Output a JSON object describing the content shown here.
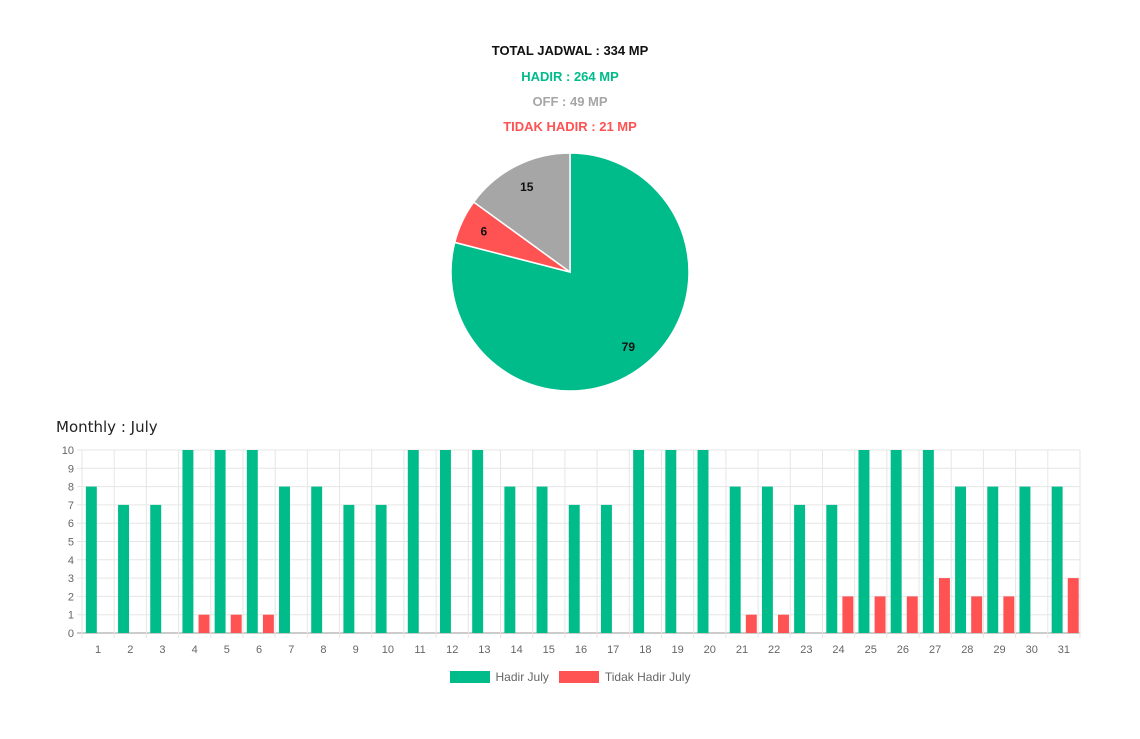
{
  "summary": {
    "total": "TOTAL JADWAL : 334 MP",
    "hadir": "HADIR : 264 MP",
    "off": "OFF : 49 MP",
    "tidak_hadir": "TIDAK HADIR : 21 MP"
  },
  "colors": {
    "hadir": "#00bc8a",
    "off": "#a6a6a6",
    "tidak_hadir": "#ff5252",
    "total": "#111111"
  },
  "monthly_title": "Monthly : July",
  "chart_data": [
    {
      "type": "pie",
      "slices": [
        {
          "value": 79,
          "label": "79",
          "color": "#00bc8a"
        },
        {
          "value": 6,
          "label": "6",
          "color": "#ff5252"
        },
        {
          "value": 15,
          "label": "15",
          "color": "#a6a6a6"
        }
      ]
    },
    {
      "type": "bar",
      "title": "Monthly : July",
      "categories": [
        "1",
        "2",
        "3",
        "4",
        "5",
        "6",
        "7",
        "8",
        "9",
        "10",
        "11",
        "12",
        "13",
        "14",
        "15",
        "16",
        "17",
        "18",
        "19",
        "20",
        "21",
        "22",
        "23",
        "24",
        "25",
        "26",
        "27",
        "28",
        "29",
        "30",
        "31"
      ],
      "series": [
        {
          "name": "Hadir July",
          "color": "#00bc8a",
          "values": [
            8,
            7,
            7,
            10,
            10,
            10,
            8,
            8,
            7,
            7,
            10,
            10,
            10,
            8,
            8,
            7,
            7,
            10,
            10,
            10,
            8,
            8,
            7,
            7,
            10,
            10,
            10,
            8,
            8,
            8,
            8
          ]
        },
        {
          "name": "Tidak Hadir July",
          "color": "#ff5252",
          "values": [
            0,
            0,
            0,
            1,
            1,
            1,
            0,
            0,
            0,
            0,
            0,
            0,
            0,
            0,
            0,
            0,
            0,
            0,
            0,
            0,
            1,
            1,
            0,
            2,
            2,
            2,
            3,
            2,
            2,
            0,
            3
          ]
        }
      ],
      "ylim": [
        0,
        10
      ],
      "yticks": [
        0,
        1,
        2,
        3,
        4,
        5,
        6,
        7,
        8,
        9,
        10
      ],
      "grid": true,
      "legend": "bottom"
    }
  ]
}
